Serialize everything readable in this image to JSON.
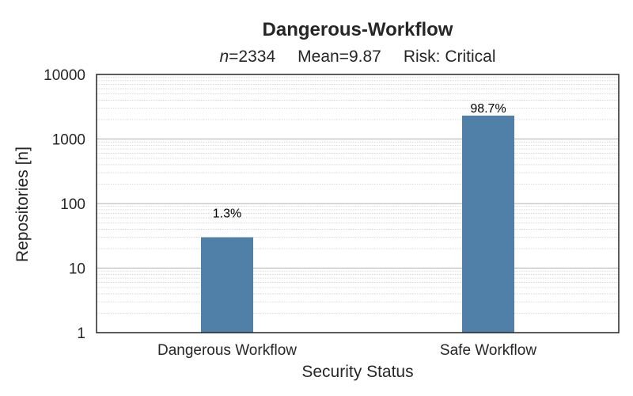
{
  "chart_data": {
    "type": "bar",
    "title": "Dangerous-Workflow",
    "subtitle": {
      "n_symbol": "n",
      "n_value": "=2334",
      "mean": "Mean=9.87",
      "risk": "Risk: Critical"
    },
    "xlabel": "Security Status",
    "ylabel": "Repositories [n]",
    "categories": [
      "Dangerous Workflow",
      "Safe Workflow"
    ],
    "values": [
      30,
      2304
    ],
    "data_labels": [
      "1.3%",
      "98.7%"
    ],
    "yscale": "log",
    "ylim": [
      1,
      10000
    ],
    "yticks": [
      1,
      10,
      100,
      1000,
      10000
    ],
    "ytick_labels": [
      "1",
      "10",
      "100",
      "1000",
      "10000"
    ],
    "grid": true,
    "colors": {
      "bar": "#5080a8",
      "grid_major": "#b0b0b0",
      "grid_minor": "#cccccc",
      "axis": "#262626"
    }
  }
}
